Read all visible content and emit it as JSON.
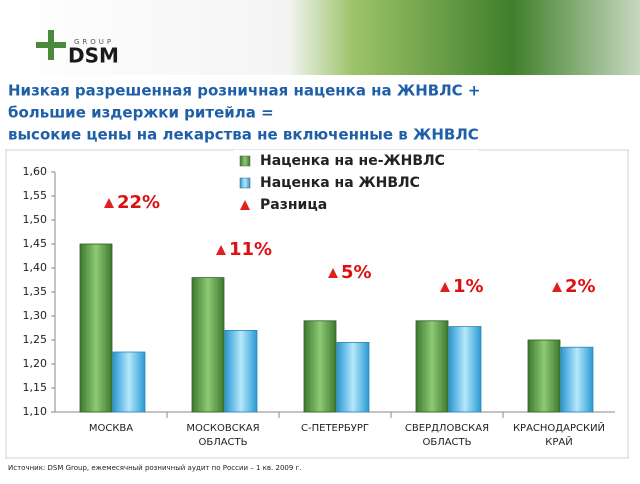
{
  "header": {
    "logo_text": "DSM",
    "logo_sub": "GROUP"
  },
  "chart_data": {
    "type": "bar",
    "title": [
      "Низкая разрешенная розничная наценка на ЖНВЛС +",
      "большие издержки ритейла =",
      "высокие цены на лекарства не включенные в ЖНВЛС"
    ],
    "categories": [
      "МОСКВА",
      "МОСКОВСКАЯ ОБЛАСТЬ",
      "С-ПЕТЕРБУРГ",
      "СВЕРДЛОВСКАЯ ОБЛАСТЬ",
      "КРАСНОДАРСКИЙ КРАЙ"
    ],
    "series": [
      {
        "name": "Наценка на не-ЖНВЛС",
        "color": "#5a9e4a",
        "values": [
          1.45,
          1.38,
          1.29,
          1.29,
          1.25
        ]
      },
      {
        "name": "Наценка на ЖНВЛС",
        "color": "#3fb4ea",
        "values": [
          1.225,
          1.27,
          1.245,
          1.278,
          1.235
        ]
      },
      {
        "name": "Разница",
        "color": "#e02020",
        "values": [
          22,
          11,
          5,
          1,
          2
        ],
        "value_labels": [
          "22%",
          "11%",
          "5%",
          "1%",
          "2%"
        ]
      }
    ],
    "ylim": [
      1.1,
      1.6
    ],
    "yticks": [
      {
        "value": 1.1,
        "label": "1,10"
      },
      {
        "value": 1.15,
        "label": "1,15"
      },
      {
        "value": 1.2,
        "label": "1,20"
      },
      {
        "value": 1.25,
        "label": "1,25"
      },
      {
        "value": 1.3,
        "label": "1,30"
      },
      {
        "value": 1.35,
        "label": "1,35"
      },
      {
        "value": 1.4,
        "label": "1,40"
      },
      {
        "value": 1.45,
        "label": "1,45"
      },
      {
        "value": 1.5,
        "label": "1,50"
      },
      {
        "value": 1.55,
        "label": "1,55"
      },
      {
        "value": 1.6,
        "label": "1,60"
      }
    ],
    "source": "Источник: DSM Group, ежемесячный розничный аудит по России – 1 кв. 2009 г."
  }
}
